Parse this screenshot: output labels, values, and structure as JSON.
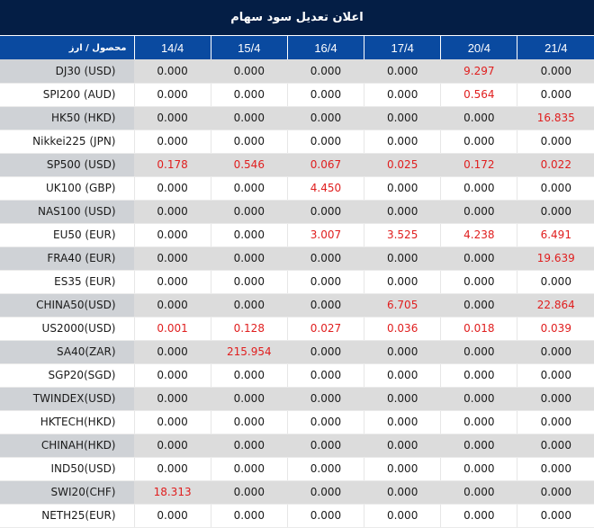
{
  "title": "اعلان تعدیل سود سهام",
  "header": {
    "product_label": "محصول / ارز",
    "dates": [
      "14/4",
      "15/4",
      "16/4",
      "17/4",
      "20/4",
      "21/4"
    ]
  },
  "colors": {
    "title_bg": "#041e45",
    "header_bg": "#0a4aa0",
    "row_shade": "#dcdcdc",
    "product_shade": "#cfd2d6",
    "highlight": "#e01e1e",
    "text": "#1a1a1a"
  },
  "rows": [
    {
      "product": "DJ30 (USD)",
      "values": [
        "0.000",
        "0.000",
        "0.000",
        "0.000",
        "9.297",
        "0.000"
      ]
    },
    {
      "product": "SPI200 (AUD)",
      "values": [
        "0.000",
        "0.000",
        "0.000",
        "0.000",
        "0.564",
        "0.000"
      ]
    },
    {
      "product": "HK50 (HKD)",
      "values": [
        "0.000",
        "0.000",
        "0.000",
        "0.000",
        "0.000",
        "16.835"
      ]
    },
    {
      "product": "Nikkei225 (JPN)",
      "values": [
        "0.000",
        "0.000",
        "0.000",
        "0.000",
        "0.000",
        "0.000"
      ]
    },
    {
      "product": "SP500 (USD)",
      "values": [
        "0.178",
        "0.546",
        "0.067",
        "0.025",
        "0.172",
        "0.022"
      ]
    },
    {
      "product": "UK100 (GBP)",
      "values": [
        "0.000",
        "0.000",
        "4.450",
        "0.000",
        "0.000",
        "0.000"
      ]
    },
    {
      "product": "NAS100 (USD)",
      "values": [
        "0.000",
        "0.000",
        "0.000",
        "0.000",
        "0.000",
        "0.000"
      ]
    },
    {
      "product": "EU50 (EUR)",
      "values": [
        "0.000",
        "0.000",
        "3.007",
        "3.525",
        "4.238",
        "6.491"
      ]
    },
    {
      "product": "FRA40 (EUR)",
      "values": [
        "0.000",
        "0.000",
        "0.000",
        "0.000",
        "0.000",
        "19.639"
      ]
    },
    {
      "product": "ES35 (EUR)",
      "values": [
        "0.000",
        "0.000",
        "0.000",
        "0.000",
        "0.000",
        "0.000"
      ]
    },
    {
      "product": "CHINA50(USD)",
      "values": [
        "0.000",
        "0.000",
        "0.000",
        "6.705",
        "0.000",
        "22.864"
      ]
    },
    {
      "product": "US2000(USD)",
      "values": [
        "0.001",
        "0.128",
        "0.027",
        "0.036",
        "0.018",
        "0.039"
      ]
    },
    {
      "product": "SA40(ZAR)",
      "values": [
        "0.000",
        "215.954",
        "0.000",
        "0.000",
        "0.000",
        "0.000"
      ]
    },
    {
      "product": "SGP20(SGD)",
      "values": [
        "0.000",
        "0.000",
        "0.000",
        "0.000",
        "0.000",
        "0.000"
      ]
    },
    {
      "product": "TWINDEX(USD)",
      "values": [
        "0.000",
        "0.000",
        "0.000",
        "0.000",
        "0.000",
        "0.000"
      ]
    },
    {
      "product": "HKTECH(HKD)",
      "values": [
        "0.000",
        "0.000",
        "0.000",
        "0.000",
        "0.000",
        "0.000"
      ]
    },
    {
      "product": "CHINAH(HKD)",
      "values": [
        "0.000",
        "0.000",
        "0.000",
        "0.000",
        "0.000",
        "0.000"
      ]
    },
    {
      "product": "IND50(USD)",
      "values": [
        "0.000",
        "0.000",
        "0.000",
        "0.000",
        "0.000",
        "0.000"
      ]
    },
    {
      "product": "SWI20(CHF)",
      "values": [
        "18.313",
        "0.000",
        "0.000",
        "0.000",
        "0.000",
        "0.000"
      ]
    },
    {
      "product": "NETH25(EUR)",
      "values": [
        "0.000",
        "0.000",
        "0.000",
        "0.000",
        "0.000",
        "0.000"
      ]
    }
  ]
}
